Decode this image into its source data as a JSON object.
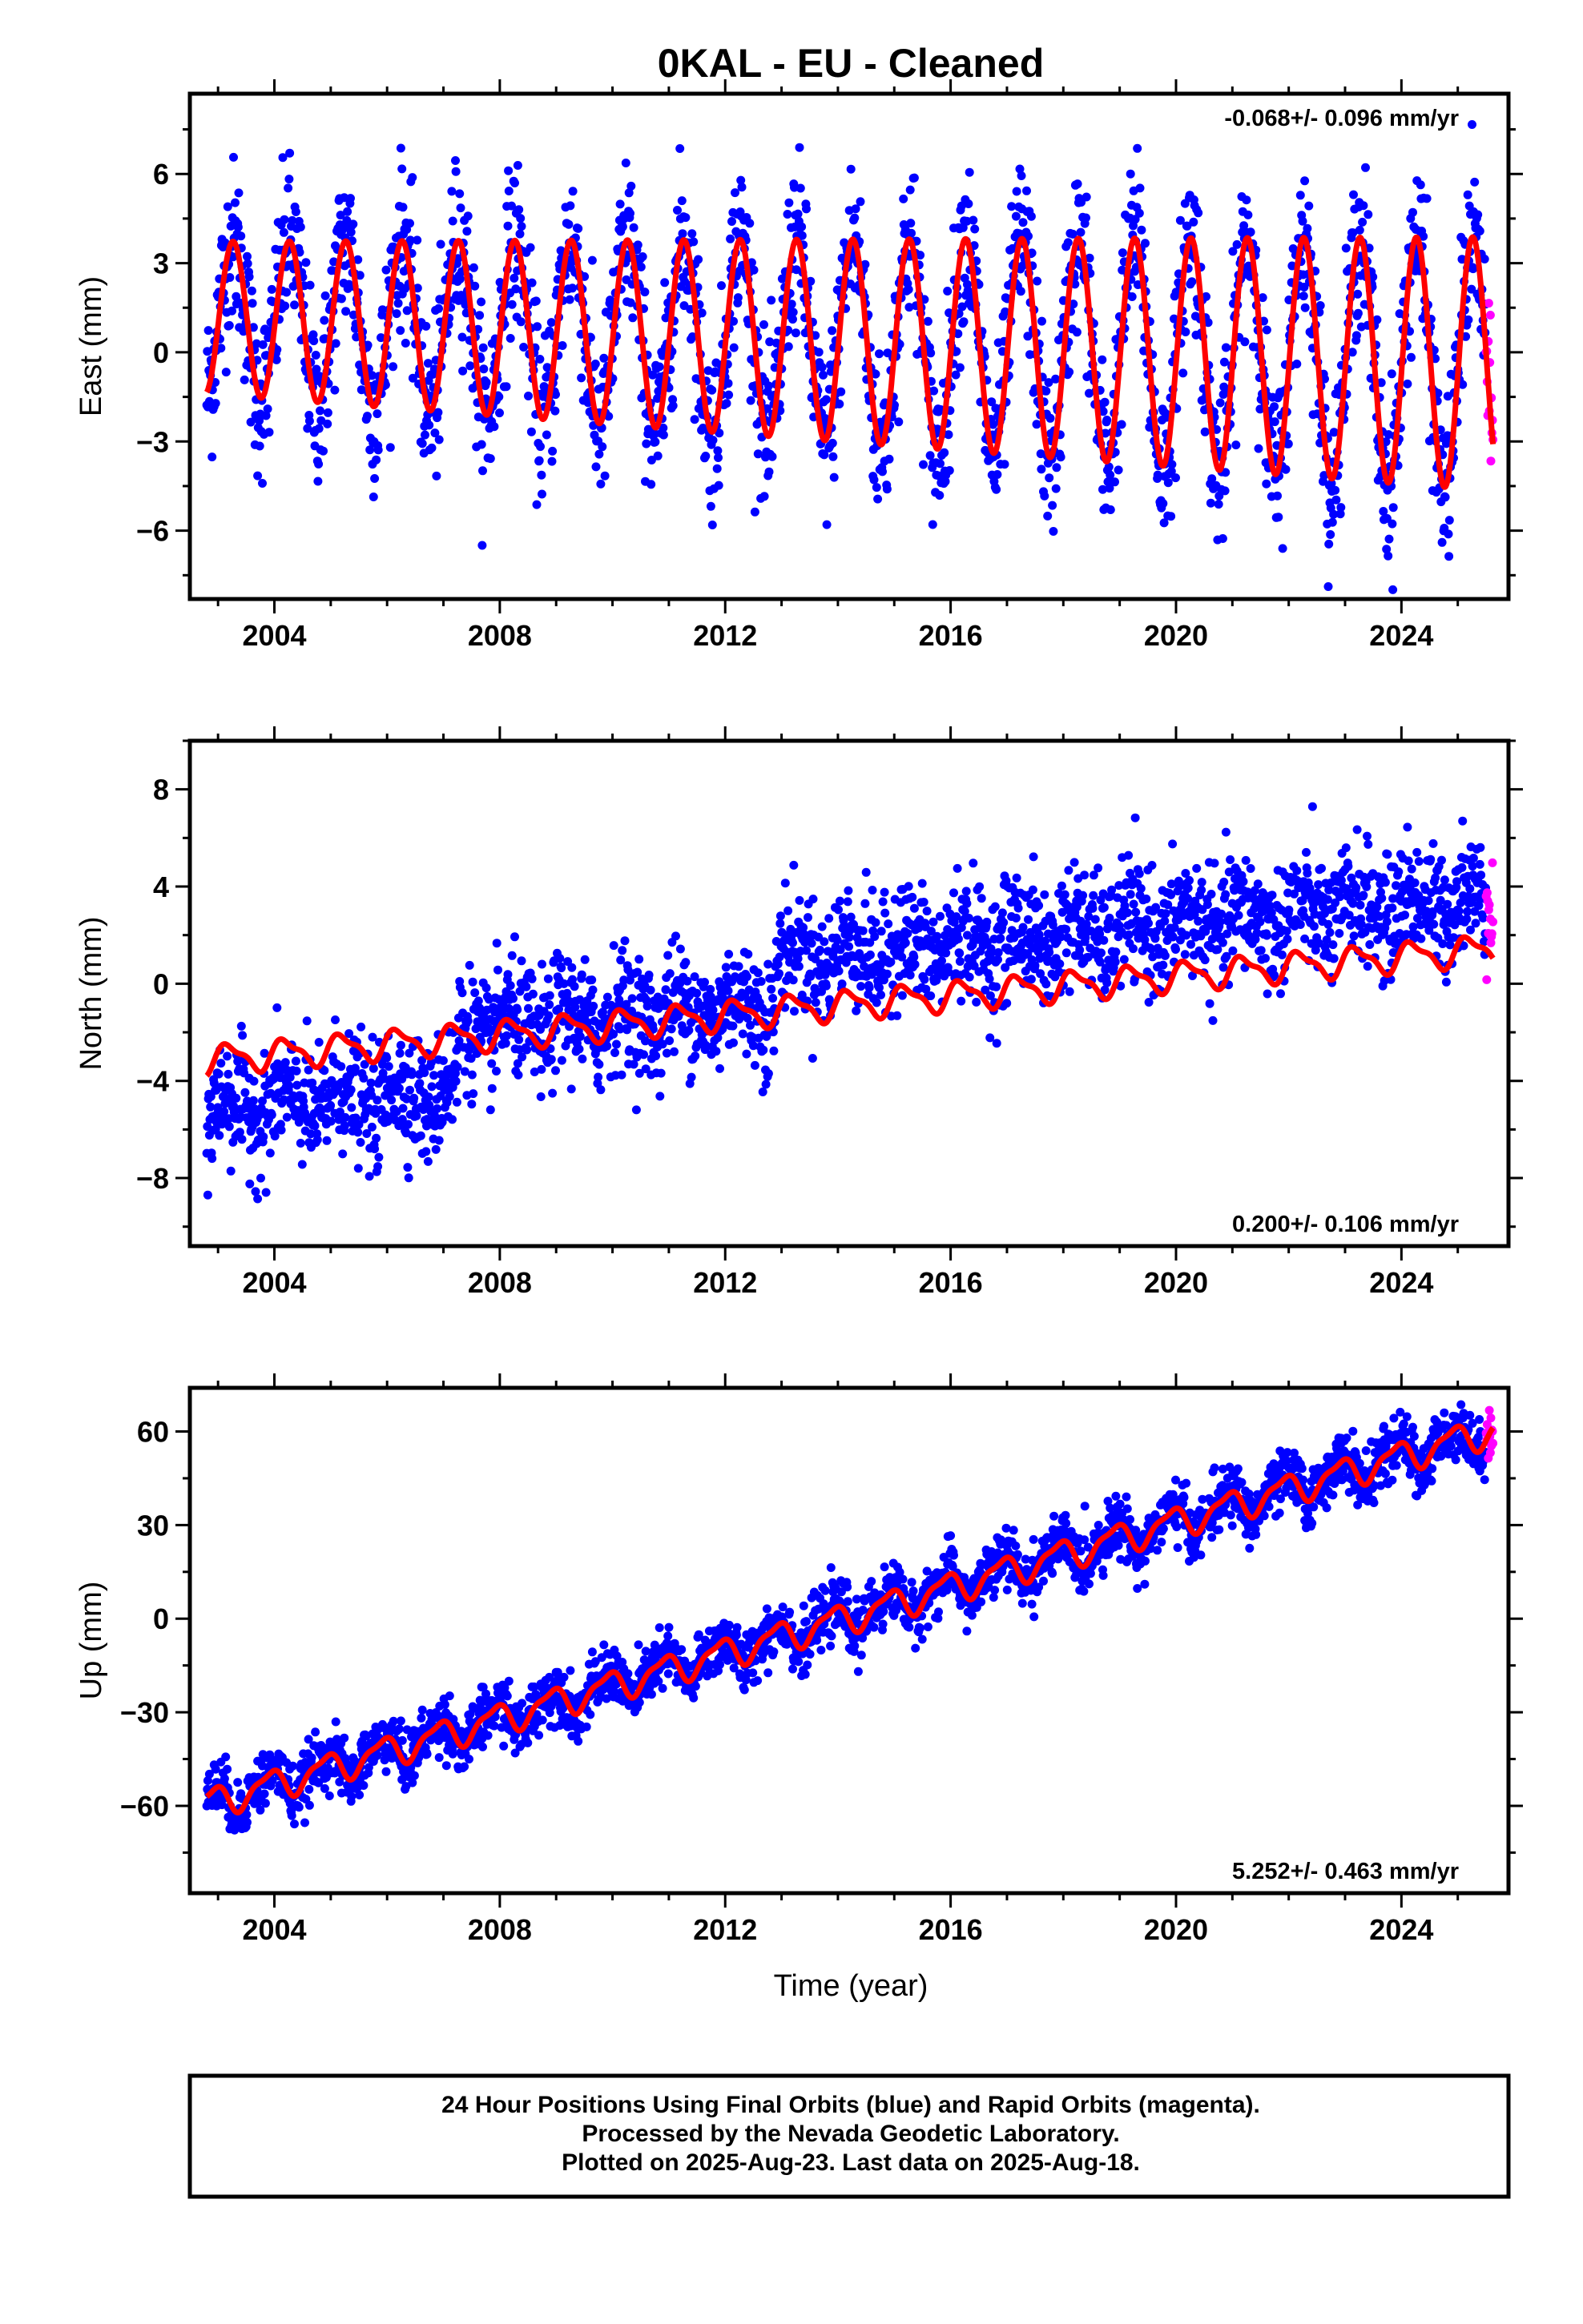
{
  "chart_data": {
    "title": "0KAL  - EU - Cleaned",
    "type": "scatter",
    "x_range": [
      2002.5,
      2025.9
    ],
    "x_ticks": [
      2004,
      2008,
      2012,
      2016,
      2020,
      2024
    ],
    "x_label": "Time (year)",
    "series_colors": {
      "final_orbits": "#0000ff",
      "rapid_orbits": "#ff00ff",
      "model_fit": "#ff0000"
    },
    "first_data_year": 2002.8,
    "last_data_year": 2025.63,
    "rapid_start_year": 2025.5,
    "panels": [
      {
        "name": "east",
        "ylabel": "East (mm)",
        "ylim": [
          -8.3,
          8.7
        ],
        "yticks": [
          -6,
          -3,
          0,
          3,
          6
        ],
        "rate_label": "-0.068+/- 0.096 mm/yr",
        "rate_position": "top-right",
        "trend_mm_per_yr": -0.068,
        "fit": {
          "ref_year": 2014.0,
          "offset": 0.4,
          "annual_amp": 3.4,
          "annual_amp_growth": 0.022,
          "annual_phase": -0.1,
          "semiannual_amp": 0.0,
          "semiannual_phase": 0.0,
          "steps": []
        },
        "scatter_sd": 1.4
      },
      {
        "name": "north",
        "ylabel": "North (mm)",
        "ylim": [
          -10.8,
          10.0
        ],
        "yticks": [
          -8,
          -4,
          0,
          4,
          8
        ],
        "rate_label": "0.200+/- 0.106 mm/yr",
        "rate_position": "bottom-right",
        "trend_mm_per_yr": 0.2,
        "fit": {
          "ref_year": 2014.0,
          "offset": -0.9,
          "annual_amp": 0.55,
          "annual_amp_growth": 0.0,
          "annual_phase": 0.3,
          "semiannual_amp": 0.2,
          "semiannual_phase": 1.0,
          "steps": []
        },
        "scatter_sd": 1.2,
        "data_steps": [
          {
            "year": 2007.25,
            "size": 2.4
          },
          {
            "year": 2012.9,
            "size": 1.8
          }
        ]
      },
      {
        "name": "up",
        "ylabel": "Up (mm)",
        "ylim": [
          -88,
          74
        ],
        "yticks": [
          -60,
          -30,
          0,
          30,
          60
        ],
        "rate_label": "5.252+/- 0.463 mm/yr",
        "rate_position": "bottom-right",
        "trend_mm_per_yr": 5.252,
        "fit": {
          "ref_year": 2014.0,
          "offset": -0.5,
          "annual_amp": 4.5,
          "annual_amp_growth": 0.0,
          "annual_phase": 2.2,
          "semiannual_amp": 1.5,
          "semiannual_phase": 0.5,
          "steps": []
        },
        "scatter_sd": 4.5
      }
    ],
    "footer_lines": [
      "24 Hour Positions Using Final Orbits (blue) and Rapid Orbits (magenta).",
      "Processed by the Nevada Geodetic Laboratory.",
      "Plotted on 2025-Aug-23. Last data on 2025-Aug-18."
    ]
  }
}
